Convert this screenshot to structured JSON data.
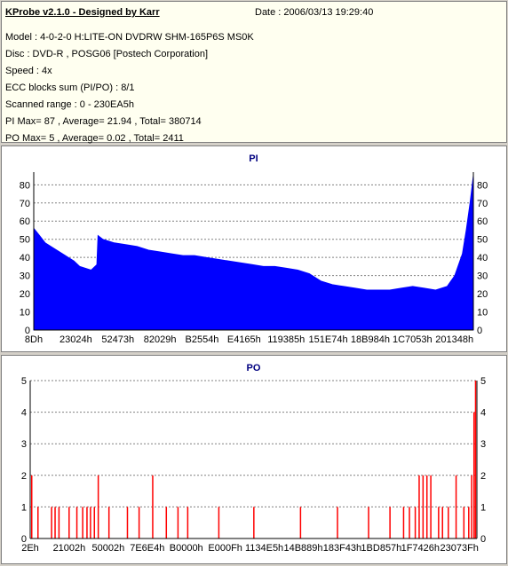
{
  "header": {
    "title": "KProbe v2.1.0 - Designed by Karr",
    "date": "Date : 2006/03/13 19:29:40",
    "lines": [
      "Model : 4-0-2-0 H:LITE-ON DVDRW SHM-165P6S MS0K",
      "Disc : DVD-R , POSG06 [Postech Corporation]",
      "Speed : 4x",
      "ECC blocks sum (PI/PO) : 8/1",
      "Scanned range : 0 - 230EA5h",
      "PI Max= 87 , Average= 21.94 , Total= 380714",
      "PO Max= 5 , Average= 0.02 , Total= 2411"
    ]
  },
  "colors": {
    "pi": "#0000ff",
    "po": "#ff0000",
    "title": "#000080"
  },
  "chart_data": [
    {
      "type": "area",
      "title": "PI",
      "ylim": [
        0,
        87
      ],
      "yticks": [
        0,
        10,
        20,
        30,
        40,
        50,
        60,
        70,
        80
      ],
      "grid": true,
      "xticks": [
        "8Dh",
        "23024h",
        "52473h",
        "82029h",
        "B2554h",
        "E4165h",
        "119385h",
        "151E74h",
        "18B984h",
        "1C7053h",
        "201348h"
      ],
      "x_range": [
        0,
        2296997
      ],
      "x": [
        0,
        30000,
        60000,
        90000,
        150000,
        210000,
        240000,
        300000,
        330000,
        336000,
        360000,
        420000,
        480000,
        540000,
        600000,
        660000,
        720000,
        780000,
        840000,
        900000,
        960000,
        1020000,
        1080000,
        1140000,
        1200000,
        1260000,
        1320000,
        1380000,
        1440000,
        1500000,
        1560000,
        1620000,
        1680000,
        1740000,
        1800000,
        1860000,
        1920000,
        1980000,
        2040000,
        2100000,
        2160000,
        2200000,
        2240000,
        2260000,
        2280000,
        2296997
      ],
      "y": [
        56,
        52,
        48,
        46,
        42,
        38,
        35,
        33,
        36,
        52,
        50,
        48,
        47,
        46,
        44,
        43,
        42,
        41,
        41,
        40,
        39,
        38,
        37,
        36,
        35,
        35,
        34,
        33,
        31,
        27,
        25,
        24,
        23,
        22,
        22,
        22,
        23,
        24,
        23,
        22,
        24,
        30,
        42,
        55,
        70,
        85
      ]
    },
    {
      "type": "bar",
      "title": "PO",
      "ylim": [
        0,
        5
      ],
      "yticks": [
        0,
        1,
        2,
        3,
        4,
        5
      ],
      "grid": true,
      "xticks": [
        "2Eh",
        "21002h",
        "50002h",
        "7E6E4h",
        "B0000h",
        "E000Fh",
        "1134E5h",
        "14B889h",
        "183F43h",
        "1BD857h",
        "1F7426h",
        "23073Fh"
      ],
      "x_range": [
        0,
        2296997
      ],
      "x": [
        8000,
        40000,
        110000,
        128000,
        148000,
        200000,
        240000,
        270000,
        292000,
        310000,
        330000,
        350000,
        405000,
        500000,
        560000,
        630000,
        700000,
        760000,
        810000,
        970000,
        1150000,
        1390000,
        1580000,
        1740000,
        1850000,
        1920000,
        1950000,
        1980000,
        2000000,
        2020000,
        2040000,
        2060000,
        2100000,
        2120000,
        2150000,
        2190000,
        2230000,
        2255000,
        2270000,
        2282000,
        2290000
      ],
      "y": [
        2,
        1,
        1,
        1,
        1,
        1,
        1,
        1,
        1,
        1,
        1,
        2,
        1,
        1,
        1,
        2,
        1,
        1,
        1,
        1,
        1,
        1,
        1,
        1,
        1,
        1,
        1,
        1,
        2,
        2,
        2,
        2,
        1,
        1,
        1,
        2,
        1,
        1,
        2,
        4,
        5
      ]
    }
  ]
}
